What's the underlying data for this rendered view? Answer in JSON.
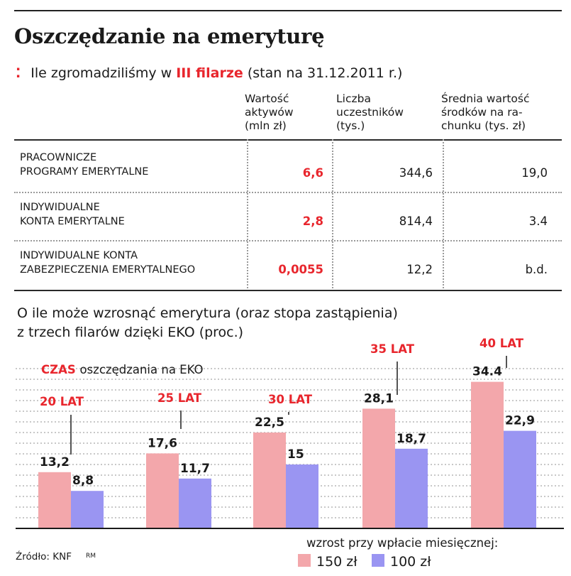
{
  "title": "Oszczędzanie na emeryturę",
  "subtitle": {
    "prefix": "Ile zgromadziliśmy w",
    "highlight": "III filarze",
    "suffix": "(stan na 31.12.2011 r.)"
  },
  "table": {
    "headers": [
      [
        "Wartość",
        "aktywów",
        "(mln zł)"
      ],
      [
        "Liczba",
        "uczestników",
        "(tys.)"
      ],
      [
        "Średnia wartość",
        "środków na ra-",
        "chunku (tys. zł)"
      ]
    ],
    "rows": [
      {
        "label": [
          "PRACOWNICZE",
          "PROGRAMY EMERYTALNE"
        ],
        "values": [
          "6,6",
          "344,6",
          "19,0"
        ]
      },
      {
        "label": [
          "INDYWIDUALNE",
          "KONTA EMERYTALNE"
        ],
        "values": [
          "2,8",
          "814,4",
          "3.4"
        ]
      },
      {
        "label": [
          "INDYWIDUALNE KONTA",
          "ZABEZPIECZENIA EMERYTALNEGO"
        ],
        "values": [
          "0,0055",
          "12,2",
          "b.d."
        ]
      }
    ]
  },
  "chart_data": {
    "type": "bar",
    "title": [
      "O ile może wzrosnąć emerytura (oraz stopa zastąpienia)",
      "z trzech filarów dzięki EKO (proc.)"
    ],
    "category_axis_label": {
      "highlight": "CZAS",
      "rest": "oszczędzania na EKO"
    },
    "categories": [
      "20 LAT",
      "25 LAT",
      "30 LAT",
      "35 LAT",
      "40 LAT"
    ],
    "series": [
      {
        "name": "150 zł",
        "values": [
          13.2,
          17.6,
          22.5,
          28.1,
          34.4
        ],
        "labels": [
          "13,2",
          "17,6",
          "22,5",
          "28,1",
          "34.4"
        ],
        "color": "#f3a7ab"
      },
      {
        "name": "100 zł",
        "values": [
          8.8,
          11.7,
          15,
          18.7,
          22.9
        ],
        "labels": [
          "8,8",
          "11,7",
          "15",
          "18,7",
          "22,9"
        ],
        "color": "#9a95f2"
      }
    ],
    "legend_title": "wzrost przy wpłacie miesięcznej:",
    "legend_position": "bottom-right",
    "ylim": [
      0,
      40
    ],
    "grid": true,
    "accent_color": "#e8262d"
  },
  "source": {
    "text": "Źródło: KNF",
    "author": "RM"
  }
}
